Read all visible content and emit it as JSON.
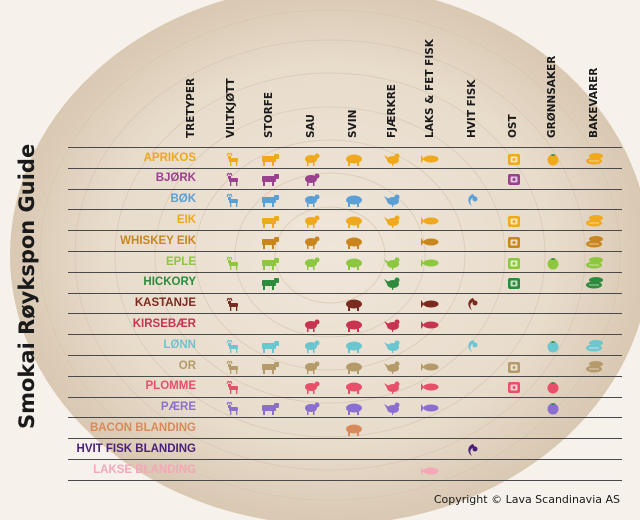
{
  "title": "Smokai Røykspon Guide",
  "copyright": "Copyright © Lava Scandinavia AS",
  "columns": [
    {
      "key": "tretyper",
      "label": "TRETYPER",
      "icon": "none"
    },
    {
      "key": "viltkjott",
      "label": "VILTKJØTT",
      "icon": "deer-icon"
    },
    {
      "key": "storfe",
      "label": "STORFE",
      "icon": "cow-icon"
    },
    {
      "key": "sau",
      "label": "SAU",
      "icon": "sheep-icon"
    },
    {
      "key": "svin",
      "label": "SVIN",
      "icon": "pig-icon"
    },
    {
      "key": "fjaerkre",
      "label": "FJÆRKRE",
      "icon": "chicken-icon"
    },
    {
      "key": "laks",
      "label": "LAKS & FET FISK",
      "icon": "salmon-icon"
    },
    {
      "key": "hvitfisk",
      "label": "HVIT FISK",
      "icon": "white-fish-icon"
    },
    {
      "key": "ost",
      "label": "OST",
      "icon": "cheese-icon"
    },
    {
      "key": "gronnsaker",
      "label": "GRØNNSAKER",
      "icon": "tomato-icon"
    },
    {
      "key": "bakevarer",
      "label": "BAKEVARER",
      "icon": "bread-icon"
    }
  ],
  "rows": [
    {
      "name": "APRIKOS",
      "color": "#f0a81c",
      "uses": [
        "viltkjott",
        "storfe",
        "sau",
        "svin",
        "fjaerkre",
        "laks",
        "ost",
        "gronnsaker",
        "bakevarer"
      ]
    },
    {
      "name": "BJØRK",
      "color": "#9b3f8f",
      "uses": [
        "viltkjott",
        "storfe",
        "sau",
        "ost"
      ]
    },
    {
      "name": "BØK",
      "color": "#5aa0d6",
      "uses": [
        "viltkjott",
        "storfe",
        "sau",
        "svin",
        "fjaerkre",
        "hvitfisk"
      ]
    },
    {
      "name": "EIK",
      "color": "#f0a81c",
      "uses": [
        "storfe",
        "sau",
        "svin",
        "fjaerkre",
        "laks",
        "ost",
        "bakevarer"
      ]
    },
    {
      "name": "WHISKEY EIK",
      "color": "#c9861e",
      "uses": [
        "storfe",
        "sau",
        "svin",
        "laks",
        "ost",
        "bakevarer"
      ]
    },
    {
      "name": "EPLE",
      "color": "#8dc63f",
      "uses": [
        "viltkjott",
        "storfe",
        "sau",
        "svin",
        "fjaerkre",
        "laks",
        "ost",
        "gronnsaker",
        "bakevarer"
      ]
    },
    {
      "name": "HICKORY",
      "color": "#2e8b3e",
      "uses": [
        "storfe",
        "fjaerkre",
        "ost",
        "bakevarer"
      ]
    },
    {
      "name": "KASTANJE",
      "color": "#7b2a1f",
      "uses": [
        "viltkjott",
        "svin",
        "laks",
        "hvitfisk"
      ]
    },
    {
      "name": "KIRSEBÆR",
      "color": "#c8334f",
      "uses": [
        "sau",
        "svin",
        "fjaerkre",
        "laks"
      ]
    },
    {
      "name": "LØNN",
      "color": "#6cc6cf",
      "uses": [
        "viltkjott",
        "storfe",
        "sau",
        "svin",
        "fjaerkre",
        "hvitfisk",
        "gronnsaker",
        "bakevarer"
      ]
    },
    {
      "name": "OR",
      "color": "#b59a6b",
      "uses": [
        "viltkjott",
        "storfe",
        "sau",
        "svin",
        "fjaerkre",
        "laks",
        "ost",
        "bakevarer"
      ]
    },
    {
      "name": "PLOMME",
      "color": "#e8506a",
      "uses": [
        "viltkjott",
        "sau",
        "svin",
        "fjaerkre",
        "laks",
        "ost",
        "gronnsaker"
      ]
    },
    {
      "name": "PÆRE",
      "color": "#8a6fd1",
      "uses": [
        "viltkjott",
        "storfe",
        "sau",
        "svin",
        "fjaerkre",
        "laks",
        "gronnsaker"
      ]
    },
    {
      "name": "BACON BLANDING",
      "color": "#d98a5b",
      "uses": [
        "svin"
      ]
    },
    {
      "name": "HVIT FISK BLANDING",
      "color": "#4a1f78",
      "uses": [
        "hvitfisk"
      ]
    },
    {
      "name": "LAKSE BLANDING",
      "color": "#f4a7b6",
      "uses": [
        "laks"
      ]
    }
  ]
}
